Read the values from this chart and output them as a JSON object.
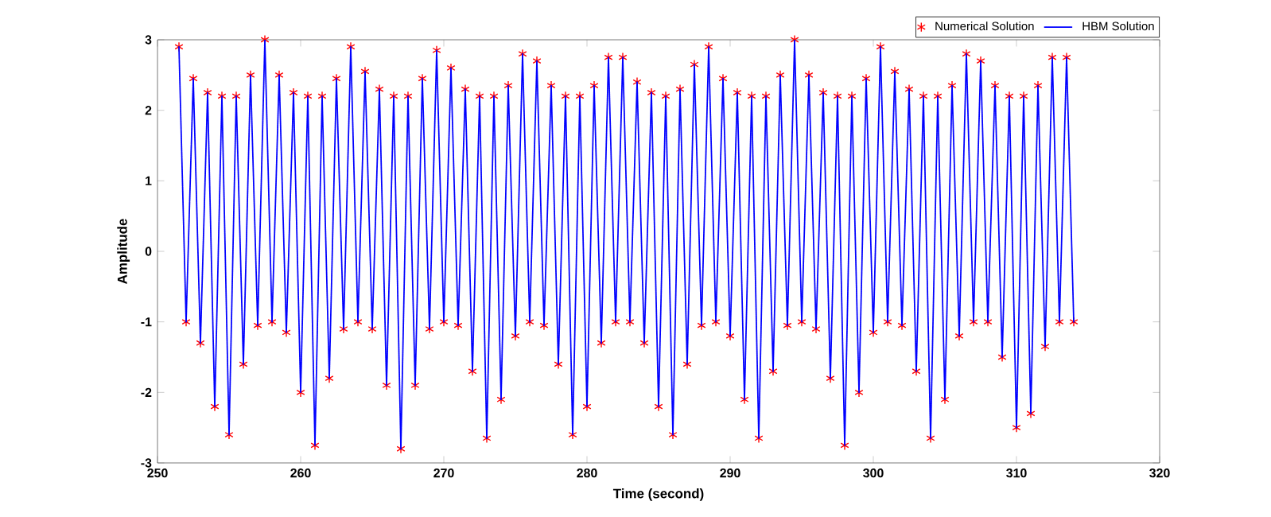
{
  "chart_data": {
    "type": "line",
    "xlabel": "Time (second)",
    "ylabel": "Amplitude",
    "xlim": [
      250,
      320
    ],
    "xticks": [
      250,
      260,
      270,
      280,
      290,
      300,
      310,
      320
    ],
    "ylim": [
      -3,
      3
    ],
    "yticks": [
      -3,
      -2,
      -1,
      0,
      1,
      2,
      3
    ],
    "grid": false,
    "legend": "top right",
    "x": [
      251.5,
      252,
      252.5,
      253,
      253.5,
      254,
      254.5,
      255,
      255.5,
      256,
      256.5,
      257,
      257.5,
      258,
      258.5,
      259,
      259.5,
      260,
      260.5,
      261,
      261.5,
      262,
      262.5,
      263,
      263.5,
      264,
      264.5,
      265,
      265.5,
      266,
      266.5,
      267,
      267.5,
      268,
      268.5,
      269,
      269.5,
      270,
      270.5,
      271,
      271.5,
      272,
      272.5,
      273,
      273.5,
      274,
      274.5,
      275,
      275.5,
      276,
      276.5,
      277,
      277.5,
      278,
      278.5,
      279,
      279.5,
      280,
      280.5,
      281,
      281.5,
      282,
      282.5,
      283,
      283.5,
      284,
      284.5,
      285,
      285.5,
      286,
      286.5,
      287,
      287.5,
      288,
      288.5,
      289,
      289.5,
      290,
      290.5,
      291,
      291.5,
      292,
      292.5,
      293,
      293.5,
      294,
      294.5,
      295,
      295.5,
      296,
      296.5,
      297,
      297.5,
      298,
      298.5,
      299,
      299.5,
      300,
      300.5,
      301,
      301.5,
      302,
      302.5,
      303,
      303.5,
      304,
      304.5,
      305,
      305.5,
      306,
      306.5,
      307,
      307.5,
      308,
      308.5,
      309,
      309.5,
      310,
      310.5,
      311,
      311.5,
      312,
      312.5,
      313,
      313.5,
      314
    ],
    "series": [
      {
        "name": "Numerical Solution",
        "type": "scatter",
        "marker": "cross",
        "color": "#ff0000",
        "values": [
          2.9,
          -1.0,
          2.45,
          -1.3,
          2.25,
          -2.2,
          2.2,
          -2.6,
          2.2,
          -1.6,
          2.5,
          -1.05,
          3.0,
          -1.0,
          2.5,
          -1.15,
          2.25,
          -2.0,
          2.2,
          -2.75,
          2.2,
          -1.8,
          2.45,
          -1.1,
          2.9,
          -1.0,
          2.55,
          -1.1,
          2.3,
          -1.9,
          2.2,
          -2.8,
          2.2,
          -1.9,
          2.45,
          -1.1,
          2.85,
          -1.0,
          2.6,
          -1.05,
          2.3,
          -1.7,
          2.2,
          -2.65,
          2.2,
          -2.1,
          2.35,
          -1.2,
          2.8,
          -1.0,
          2.7,
          -1.05,
          2.35,
          -1.6,
          2.2,
          -2.6,
          2.2,
          -2.2,
          2.35,
          -1.3,
          2.75,
          -1.0,
          2.75,
          -1.0,
          2.4,
          -1.3,
          2.25,
          -2.2,
          2.2,
          -2.6,
          2.3,
          -1.6,
          2.65,
          -1.05,
          2.9,
          -1.0,
          2.45,
          -1.2,
          2.25,
          -2.1,
          2.2,
          -2.65,
          2.2,
          -1.7,
          2.5,
          -1.05,
          3.0,
          -1.0,
          2.5,
          -1.1,
          2.25,
          -1.8,
          2.2,
          -2.75,
          2.2,
          -2.0,
          2.45,
          -1.15,
          2.9,
          -1.0,
          2.55,
          -1.05,
          2.3,
          -1.7,
          2.2,
          -2.65,
          2.2,
          -2.1,
          2.35,
          -1.2,
          2.8,
          -1.0,
          2.7,
          -1.0,
          2.35,
          -1.5,
          2.2,
          -2.5,
          2.2,
          -2.3,
          2.35,
          -1.35,
          2.75,
          -1.0,
          2.75,
          -1.0
        ]
      },
      {
        "name": "HBM Solution",
        "marker": "none",
        "line_style": "dotted",
        "color": "#0000ff",
        "values": [
          2.9,
          -1.0,
          2.45,
          -1.3,
          2.25,
          -2.2,
          2.2,
          -2.6,
          2.2,
          -1.6,
          2.5,
          -1.05,
          3.0,
          -1.0,
          2.5,
          -1.15,
          2.25,
          -2.0,
          2.2,
          -2.75,
          2.2,
          -1.8,
          2.45,
          -1.1,
          2.9,
          -1.0,
          2.55,
          -1.1,
          2.3,
          -1.9,
          2.2,
          -2.8,
          2.2,
          -1.9,
          2.45,
          -1.1,
          2.85,
          -1.0,
          2.6,
          -1.05,
          2.3,
          -1.7,
          2.2,
          -2.65,
          2.2,
          -2.1,
          2.35,
          -1.2,
          2.8,
          -1.0,
          2.7,
          -1.05,
          2.35,
          -1.6,
          2.2,
          -2.6,
          2.2,
          -2.2,
          2.35,
          -1.3,
          2.75,
          -1.0,
          2.75,
          -1.0,
          2.4,
          -1.3,
          2.25,
          -2.2,
          2.2,
          -2.6,
          2.3,
          -1.6,
          2.65,
          -1.05,
          2.9,
          -1.0,
          2.45,
          -1.2,
          2.25,
          -2.1,
          2.2,
          -2.65,
          2.2,
          -1.7,
          2.5,
          -1.05,
          3.0,
          -1.0,
          2.5,
          -1.1,
          2.25,
          -1.8,
          2.2,
          -2.75,
          2.2,
          -2.0,
          2.45,
          -1.15,
          2.9,
          -1.0,
          2.55,
          -1.05,
          2.3,
          -1.7,
          2.2,
          -2.65,
          2.2,
          -2.1,
          2.35,
          -1.2,
          2.8,
          -1.0,
          2.7,
          -1.0,
          2.35,
          -1.5,
          2.2,
          -2.5,
          2.2,
          -2.3,
          2.35,
          -1.35,
          2.75,
          -1.0,
          2.75,
          -1.0
        ]
      }
    ]
  }
}
